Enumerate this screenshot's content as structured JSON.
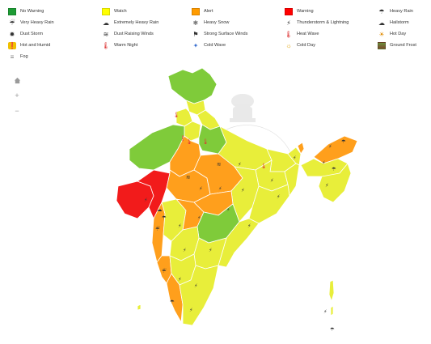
{
  "legend": {
    "colors": {
      "no_warning": "#1e9c35",
      "watch": "#ffff00",
      "alert": "#ff9b00",
      "warning": "#ff0000"
    },
    "items": [
      {
        "label": "No Warning",
        "icon": "green-swatch"
      },
      {
        "label": "Watch",
        "icon": "yellow-swatch"
      },
      {
        "label": "Alert",
        "icon": "orange-swatch"
      },
      {
        "label": "Warning",
        "icon": "red-swatch"
      },
      {
        "label": "Heavy Rain",
        "icon": "heavy-rain-icon"
      },
      {
        "label": "Very Heavy Rain",
        "icon": "very-heavy-rain-icon"
      },
      {
        "label": "Extremely Heavy Rain",
        "icon": "extremely-heavy-rain-icon"
      },
      {
        "label": "Heavy Snow",
        "icon": "heavy-snow-icon"
      },
      {
        "label": "Thunderstorm & Lightning",
        "icon": "thunderstorm-icon"
      },
      {
        "label": "Hailstorm",
        "icon": "hailstorm-icon"
      },
      {
        "label": "Dust Storm",
        "icon": "dust-storm-icon"
      },
      {
        "label": "Dust Raising Winds",
        "icon": "dust-raising-winds-icon"
      },
      {
        "label": "Strong Surface Winds",
        "icon": "strong-surface-winds-icon"
      },
      {
        "label": "Heat Wave",
        "icon": "heat-wave-icon"
      },
      {
        "label": "Hot Day",
        "icon": "hot-day-icon"
      },
      {
        "label": "Hot and Humid",
        "icon": "hot-and-humid-icon"
      },
      {
        "label": "Warm Night",
        "icon": "warm-night-icon"
      },
      {
        "label": "Cold Wave",
        "icon": "cold-wave-icon"
      },
      {
        "label": "Cold Day",
        "icon": "cold-day-icon"
      },
      {
        "label": "Ground Frost",
        "icon": "ground-frost-icon"
      },
      {
        "label": "Fog",
        "icon": "fog-icon"
      }
    ]
  },
  "controls": [
    {
      "name": "home",
      "icon": "home-icon"
    },
    {
      "name": "zoom-in",
      "icon": "plus-icon"
    },
    {
      "name": "zoom-out",
      "icon": "minus-icon"
    }
  ],
  "map": {
    "emblem": "state-emblem-watermark",
    "regions": [
      {
        "name": "jammu-kashmir",
        "level": "no_warning"
      },
      {
        "name": "himachal-pradesh",
        "level": "watch"
      },
      {
        "name": "punjab",
        "level": "watch"
      },
      {
        "name": "uttarakhand",
        "level": "watch"
      },
      {
        "name": "haryana-delhi",
        "level": "watch"
      },
      {
        "name": "west-rajasthan",
        "level": "no_warning"
      },
      {
        "name": "east-rajasthan",
        "level": "alert"
      },
      {
        "name": "west-uttar-pradesh",
        "level": "no_warning"
      },
      {
        "name": "east-uttar-pradesh",
        "level": "watch"
      },
      {
        "name": "bihar",
        "level": "watch"
      },
      {
        "name": "sub-himalayan-west-bengal",
        "level": "watch"
      },
      {
        "name": "gangetic-west-bengal",
        "level": "watch"
      },
      {
        "name": "jharkhand",
        "level": "watch"
      },
      {
        "name": "odisha",
        "level": "watch"
      },
      {
        "name": "saurashtra-kutch",
        "level": "warning"
      },
      {
        "name": "gujarat-region",
        "level": "warning"
      },
      {
        "name": "west-madhya-pradesh",
        "level": "alert"
      },
      {
        "name": "east-madhya-pradesh",
        "level": "alert"
      },
      {
        "name": "chhattisgarh",
        "level": "watch"
      },
      {
        "name": "konkan-goa",
        "level": "alert"
      },
      {
        "name": "madhya-maharashtra",
        "level": "watch"
      },
      {
        "name": "marathwada",
        "level": "alert"
      },
      {
        "name": "vidarbha",
        "level": "alert"
      },
      {
        "name": "telangana",
        "level": "no_warning"
      },
      {
        "name": "coastal-andhra-pradesh",
        "level": "watch"
      },
      {
        "name": "rayalaseema",
        "level": "watch"
      },
      {
        "name": "north-interior-karnataka",
        "level": "watch"
      },
      {
        "name": "coastal-karnataka",
        "level": "alert"
      },
      {
        "name": "south-interior-karnataka",
        "level": "watch"
      },
      {
        "name": "kerala",
        "level": "alert"
      },
      {
        "name": "tamil-nadu",
        "level": "watch"
      },
      {
        "name": "sikkim",
        "level": "alert"
      },
      {
        "name": "arunachal-pradesh",
        "level": "alert"
      },
      {
        "name": "assam-meghalaya",
        "level": "watch"
      },
      {
        "name": "northeast-states",
        "level": "watch"
      },
      {
        "name": "andaman-nicobar",
        "level": "watch"
      },
      {
        "name": "lakshadweep",
        "level": "watch"
      }
    ]
  }
}
